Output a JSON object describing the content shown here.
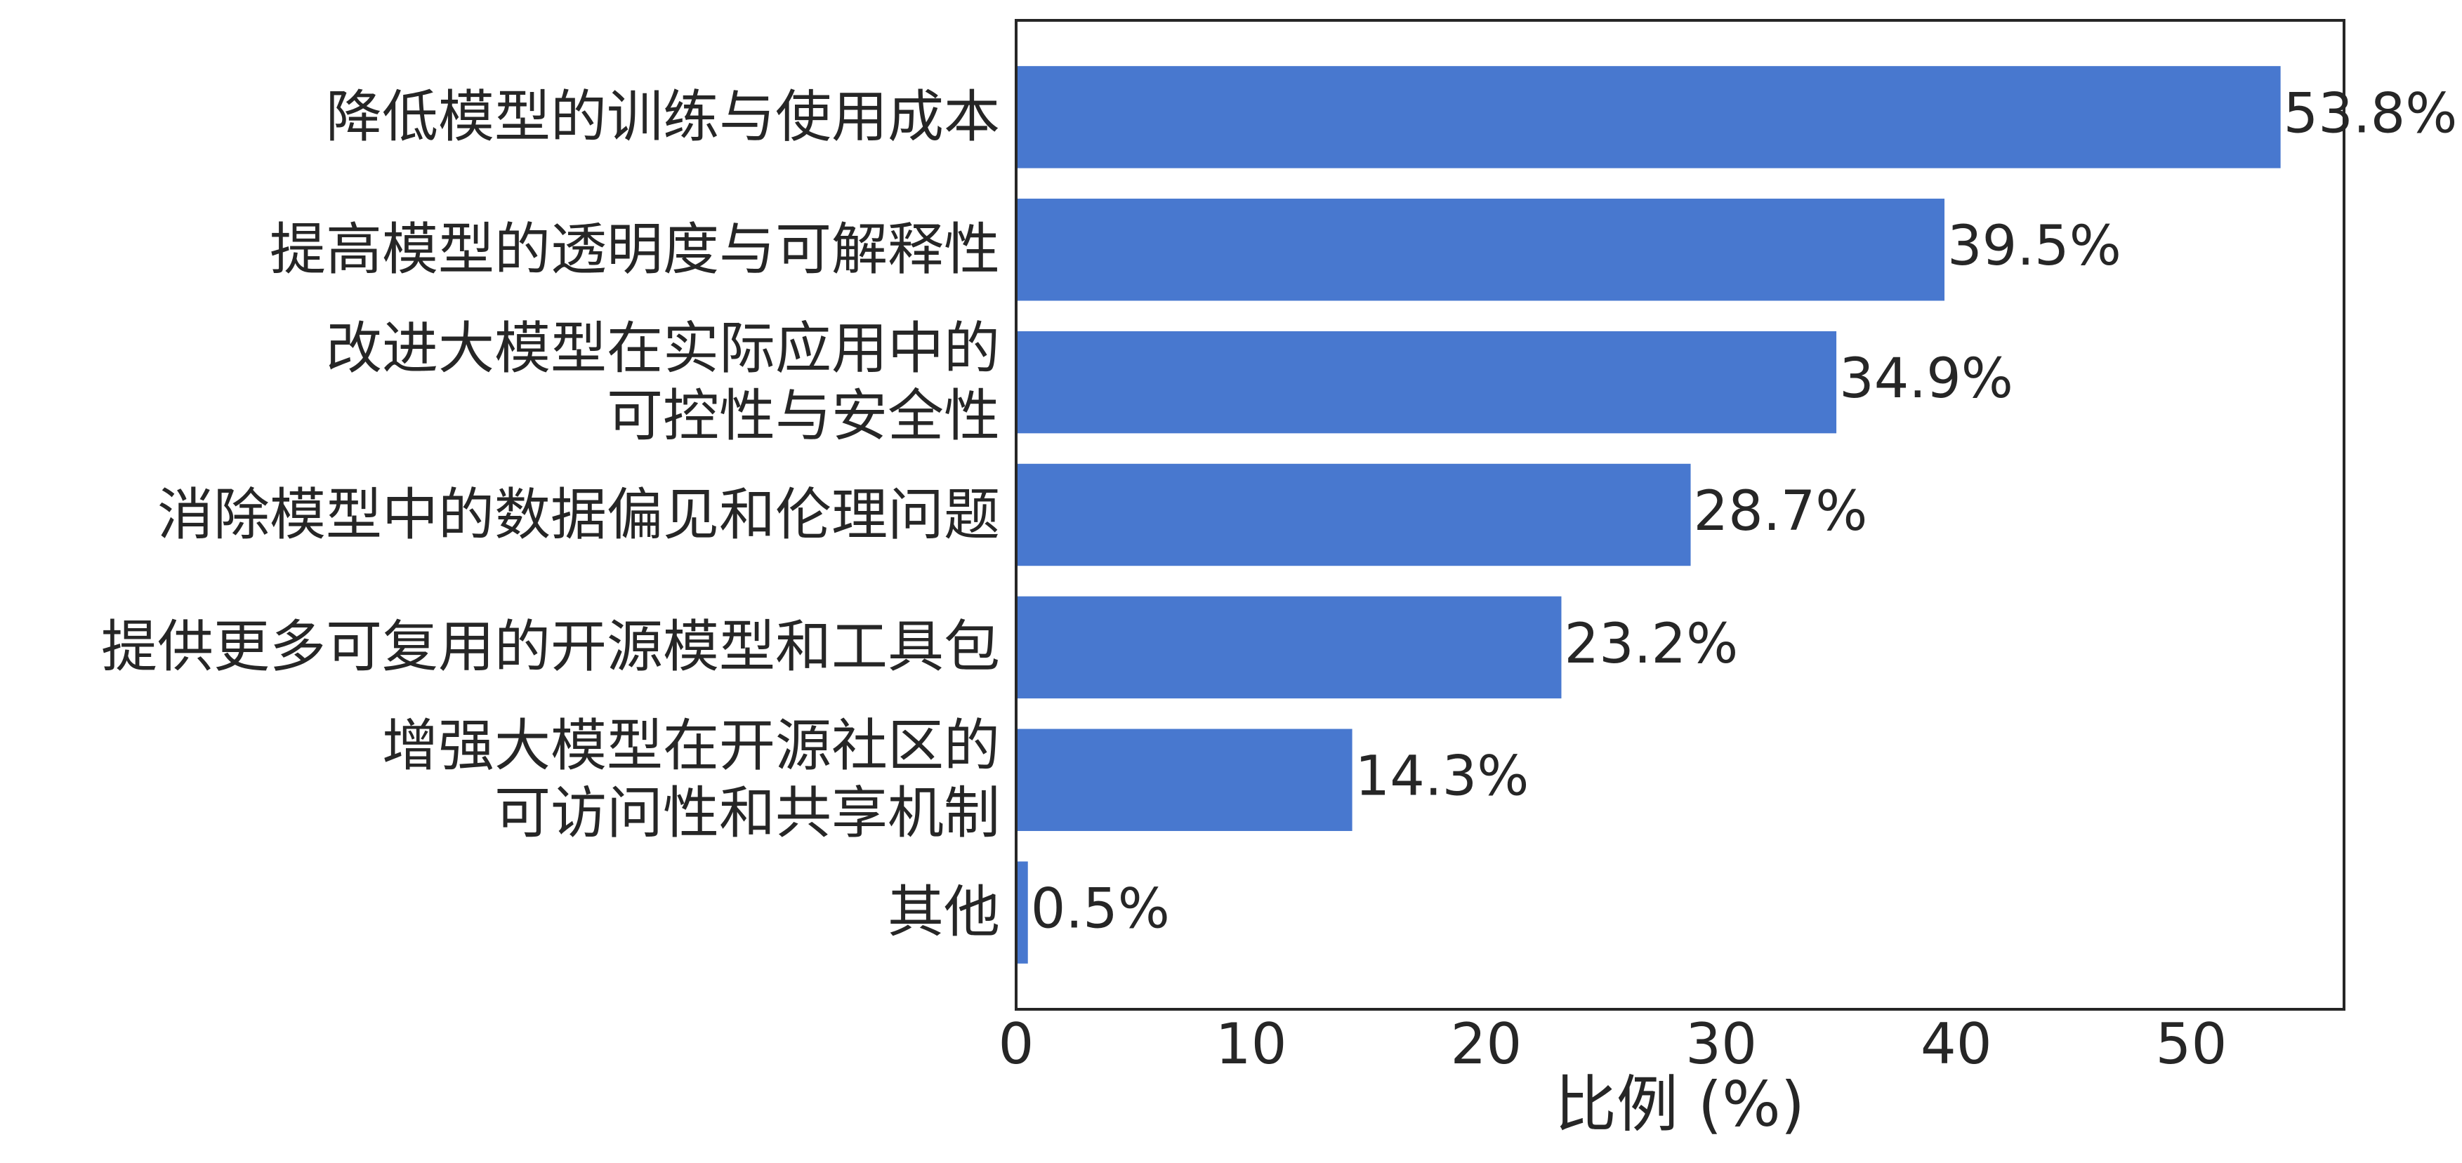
{
  "chart_data": {
    "type": "bar",
    "orientation": "horizontal",
    "xlabel": "比例 (%)",
    "categories": [
      "降低模型的训练与使用成本",
      "提高模型的透明度与可解释性",
      "改进大模型在实际应用中的\n可控性与安全性",
      "消除模型中的数据偏见和伦理问题",
      "提供更多可复用的开源模型和工具包",
      "增强大模型在开源社区的\n可访问性和共享机制",
      "其他"
    ],
    "values": [
      53.8,
      39.5,
      34.9,
      28.7,
      23.2,
      14.3,
      0.5
    ],
    "value_labels": [
      "53.8%",
      "39.5%",
      "34.9%",
      "28.7%",
      "23.2%",
      "14.3%",
      "0.5%"
    ],
    "color": "#4878cf",
    "xlim": [
      0,
      56.5
    ],
    "xticks": [
      0,
      10,
      20,
      30,
      40,
      50
    ],
    "grid": false
  }
}
